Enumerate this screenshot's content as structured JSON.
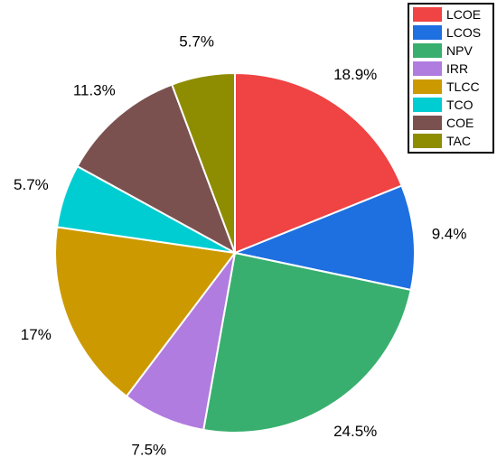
{
  "chart_data": {
    "type": "pie",
    "start_angle": "12 o'clock",
    "direction": "clockwise",
    "legend_placement": "top-right",
    "slices": [
      {
        "name": "LCOE",
        "value": 18.9,
        "label": "18.9%",
        "color": "#F04343"
      },
      {
        "name": "LCOS",
        "value": 9.4,
        "label": "9.4%",
        "color": "#1E6FE0"
      },
      {
        "name": "NPV",
        "value": 24.5,
        "label": "24.5%",
        "color": "#38AF6E"
      },
      {
        "name": "IRR",
        "value": 7.5,
        "label": "7.5%",
        "color": "#B07CDF"
      },
      {
        "name": "TLCC",
        "value": 17,
        "label": "17%",
        "color": "#CC9A00"
      },
      {
        "name": "TCO",
        "value": 5.7,
        "label": "5.7%",
        "color": "#00CDD1"
      },
      {
        "name": "COE",
        "value": 11.3,
        "label": "11.3%",
        "color": "#7B5150"
      },
      {
        "name": "TAC",
        "value": 5.7,
        "label": "5.7%",
        "color": "#8E8C00"
      }
    ]
  }
}
